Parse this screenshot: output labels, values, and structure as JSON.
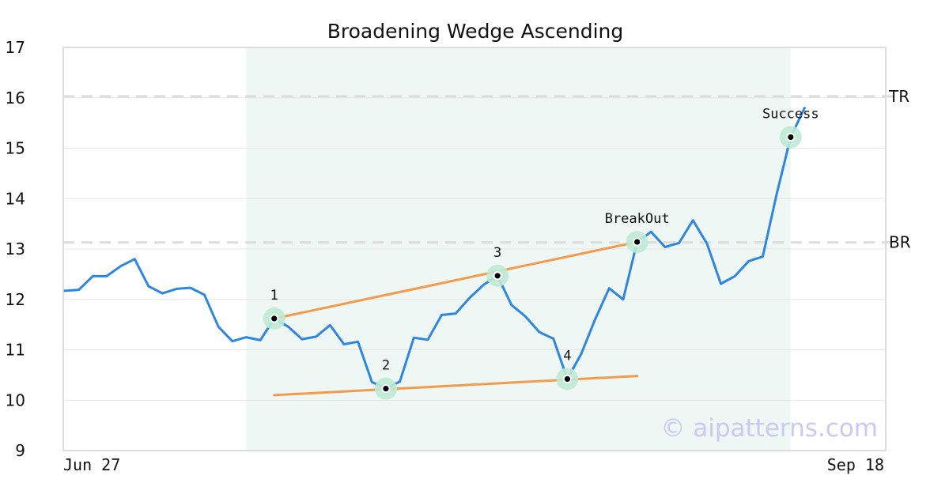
{
  "chart_data": {
    "type": "line",
    "title": "Broadening Wedge Ascending",
    "ylim": [
      9,
      17
    ],
    "yticks": [
      9,
      10,
      11,
      12,
      13,
      14,
      15,
      16,
      17
    ],
    "x_tick_labels": [
      {
        "label": "Jun 27",
        "index": 0
      },
      {
        "label": "Sep 18",
        "index": 58
      }
    ],
    "series": [
      {
        "values": [
          12.17,
          12.19,
          12.46,
          12.46,
          12.66,
          12.8,
          12.26,
          12.12,
          12.21,
          12.23,
          12.09,
          11.46,
          11.17,
          11.25,
          11.19,
          11.62,
          11.46,
          11.21,
          11.26,
          11.49,
          11.11,
          11.16,
          10.36,
          10.23,
          10.37,
          11.24,
          11.2,
          11.69,
          11.72,
          12.03,
          12.29,
          12.47,
          11.89,
          11.66,
          11.35,
          11.22,
          10.42,
          10.92,
          11.61,
          12.22,
          12.0,
          13.14,
          13.34,
          13.04,
          13.12,
          13.57,
          13.11,
          12.31,
          12.46,
          12.76,
          12.85,
          14.09,
          15.22,
          15.8
        ],
        "color": "#2f86e0"
      }
    ],
    "shaded_region": {
      "start_index": 13,
      "end_index": 52,
      "color": "#eef7f3"
    },
    "horizontal_lines": [
      {
        "label": "TR",
        "value": 16.03
      },
      {
        "label": "BR",
        "value": 13.13
      }
    ],
    "trendlines": [
      {
        "from": {
          "index": 15,
          "value": 11.62
        },
        "to": {
          "index": 41,
          "value": 13.14
        },
        "color": "#f59a4a"
      },
      {
        "from": {
          "index": 15,
          "value": 10.1
        },
        "to": {
          "index": 41,
          "value": 10.48
        },
        "color": "#f59a4a"
      }
    ],
    "points": [
      {
        "label": "1",
        "index": 15,
        "value": 11.62
      },
      {
        "label": "2",
        "index": 23,
        "value": 10.23
      },
      {
        "label": "3",
        "index": 31,
        "value": 12.47
      },
      {
        "label": "4",
        "index": 36,
        "value": 10.42
      },
      {
        "label": "BreakOut",
        "index": 41,
        "value": 13.14
      },
      {
        "label": "Success",
        "index": 52,
        "value": 15.22
      }
    ],
    "watermark": "© aipatterns.com",
    "grid": true
  }
}
